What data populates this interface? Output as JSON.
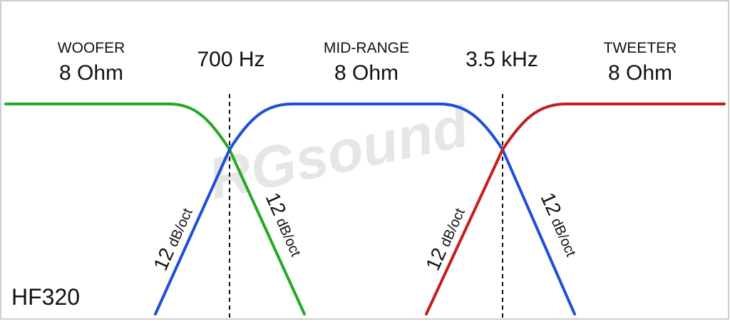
{
  "colors": {
    "woofer": "#22aa22",
    "midrange": "#1f4fd8",
    "tweeter": "#c41e1e",
    "crossover_line": "#111111",
    "border": "#bdbdbd",
    "watermark": "#cfcfcf"
  },
  "bands": [
    {
      "title": "WOOFER",
      "impedance": "8 Ohm"
    },
    {
      "title": "MID-RANGE",
      "impedance": "8 Ohm"
    },
    {
      "title": "TWEETER",
      "impedance": "8 Ohm"
    }
  ],
  "crossovers": [
    {
      "label": "700 Hz"
    },
    {
      "label": "3.5 kHz"
    }
  ],
  "slopes": [
    {
      "number": "12",
      "unit": "dB/oct"
    },
    {
      "number": "12",
      "unit": "dB/oct"
    },
    {
      "number": "12",
      "unit": "dB/oct"
    },
    {
      "number": "12",
      "unit": "dB/oct"
    }
  ],
  "model": "HF320",
  "watermark": "RGsound"
}
